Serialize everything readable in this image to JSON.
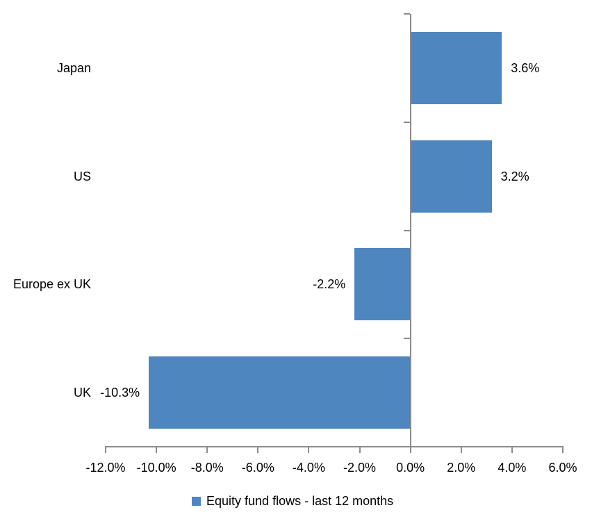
{
  "colors": {
    "bar": "#4E86C0",
    "axis": "#8C8C8C",
    "text": "#000000",
    "background": "#FFFFFF"
  },
  "legend": {
    "label": "Equity fund flows - last 12 months",
    "marker_color": "#4E86C0",
    "position": "bottom"
  },
  "chart_data": {
    "type": "bar",
    "orientation": "horizontal",
    "title": "",
    "xlabel": "",
    "ylabel": "",
    "categories": [
      "Japan",
      "US",
      "Europe ex UK",
      "UK"
    ],
    "series": [
      {
        "name": "Equity fund flows - last 12 months",
        "values": [
          3.6,
          3.2,
          -2.2,
          -10.3
        ],
        "color": "#4E86C0"
      }
    ],
    "data_labels": [
      "3.6%",
      "3.2%",
      "-2.2%",
      "-10.3%"
    ],
    "xlim": [
      -12,
      6
    ],
    "x_tick_step": 2,
    "x_tick_labels": [
      "-12.0%",
      "-10.0%",
      "-8.0%",
      "-6.0%",
      "-4.0%",
      "-2.0%",
      "0.0%",
      "2.0%",
      "4.0%",
      "6.0%"
    ],
    "grid": false,
    "zero_line": true,
    "legend_position": "bottom"
  }
}
